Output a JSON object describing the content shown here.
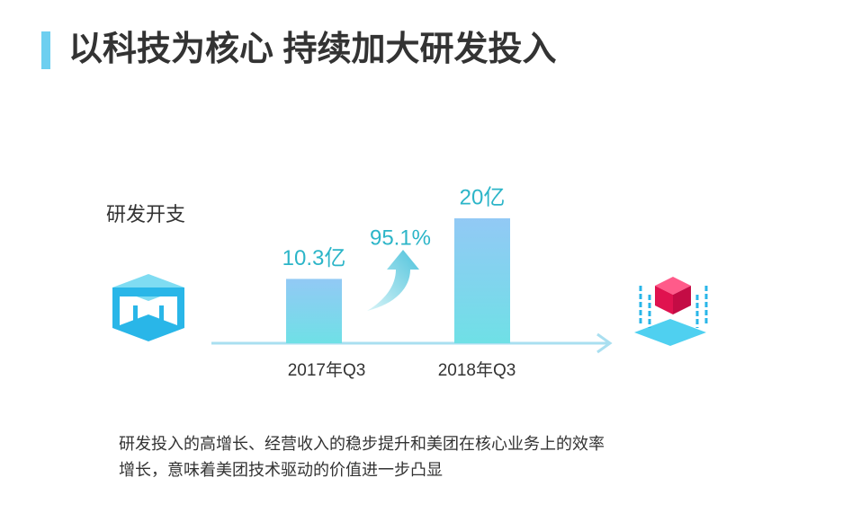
{
  "chart_data": {
    "type": "bar",
    "title": "以科技为核心 持续加大研发投入",
    "label": "研发开支",
    "categories": [
      "2017年Q3",
      "2018年Q3"
    ],
    "values": [
      10.3,
      20
    ],
    "value_labels": [
      "10.3亿",
      "20亿"
    ],
    "annotation": "95.1%",
    "note": [
      "研发投入的高增长、经营收入的稳步提升和美团在核心业务上的效率",
      "增长，意味着美团技术驱动的价值进一步凸显"
    ]
  }
}
